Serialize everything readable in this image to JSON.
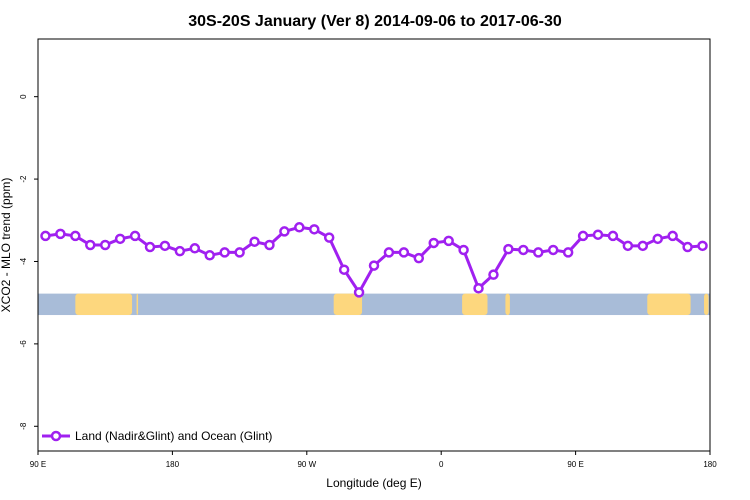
{
  "chart_data": {
    "type": "line",
    "title": "30S-20S January (Ver 8)   2014-09-06 to 2017-06-30",
    "xlabel": "Longitude (deg E)",
    "ylabel": "XCO2 - MLO trend (ppm)",
    "x_axis": {
      "min_deg": 90,
      "max_deg": 540,
      "ticks": [
        {
          "value": 90,
          "label": "90 E"
        },
        {
          "value": 180,
          "label": "180"
        },
        {
          "value": 270,
          "label": "90 W"
        },
        {
          "value": 360,
          "label": "0"
        },
        {
          "value": 450,
          "label": "90 E"
        },
        {
          "value": 540,
          "label": "180"
        }
      ]
    },
    "y_axis": {
      "ylim": [
        -8.6,
        1.4
      ],
      "ticks": [
        {
          "value": 0,
          "label": "0"
        },
        {
          "value": -2,
          "label": "-2"
        },
        {
          "value": -4,
          "label": "-4"
        },
        {
          "value": -6,
          "label": "-6"
        },
        {
          "value": -8,
          "label": "-8"
        }
      ]
    },
    "series": [
      {
        "name": "Land (Nadir&Glint) and Ocean (Glint)",
        "color": "#a020f0",
        "x": [
          95,
          105,
          115,
          125,
          135,
          145,
          155,
          165,
          175,
          185,
          195,
          205,
          215,
          225,
          235,
          245,
          255,
          265,
          275,
          285,
          295,
          305,
          315,
          325,
          335,
          345,
          355,
          365,
          375,
          385,
          395,
          405,
          415,
          425,
          435,
          445,
          455,
          465,
          475,
          485,
          495,
          505,
          515,
          525,
          535
        ],
        "y": [
          -3.38,
          -3.33,
          -3.38,
          -3.6,
          -3.6,
          -3.45,
          -3.38,
          -3.65,
          -3.62,
          -3.75,
          -3.68,
          -3.85,
          -3.78,
          -3.78,
          -3.52,
          -3.6,
          -3.27,
          -3.17,
          -3.22,
          -3.42,
          -4.2,
          -4.75,
          -4.1,
          -3.78,
          -3.78,
          -3.92,
          -3.55,
          -3.5,
          -3.72,
          -4.65,
          -4.32,
          -3.7,
          -3.72,
          -3.78,
          -3.72,
          -3.78,
          -3.38,
          -3.35,
          -3.38,
          -3.62,
          -3.62,
          -3.45,
          -3.38,
          -3.65,
          -3.62
        ]
      }
    ],
    "land_ocean_band": {
      "y_range": [
        -5.3,
        -4.78
      ],
      "ocean_color": "#a8bcd8",
      "land_color": "#fdd77e",
      "land_segments_deg": [
        [
          115,
          153
        ],
        [
          156,
          157
        ],
        [
          288,
          307
        ],
        [
          374,
          391
        ],
        [
          403,
          406
        ],
        [
          498,
          527
        ],
        [
          536,
          539
        ]
      ]
    },
    "legend": {
      "position": "bottom-left",
      "entries": [
        "Land (Nadir&Glint) and Ocean (Glint)"
      ]
    },
    "grid": false
  }
}
